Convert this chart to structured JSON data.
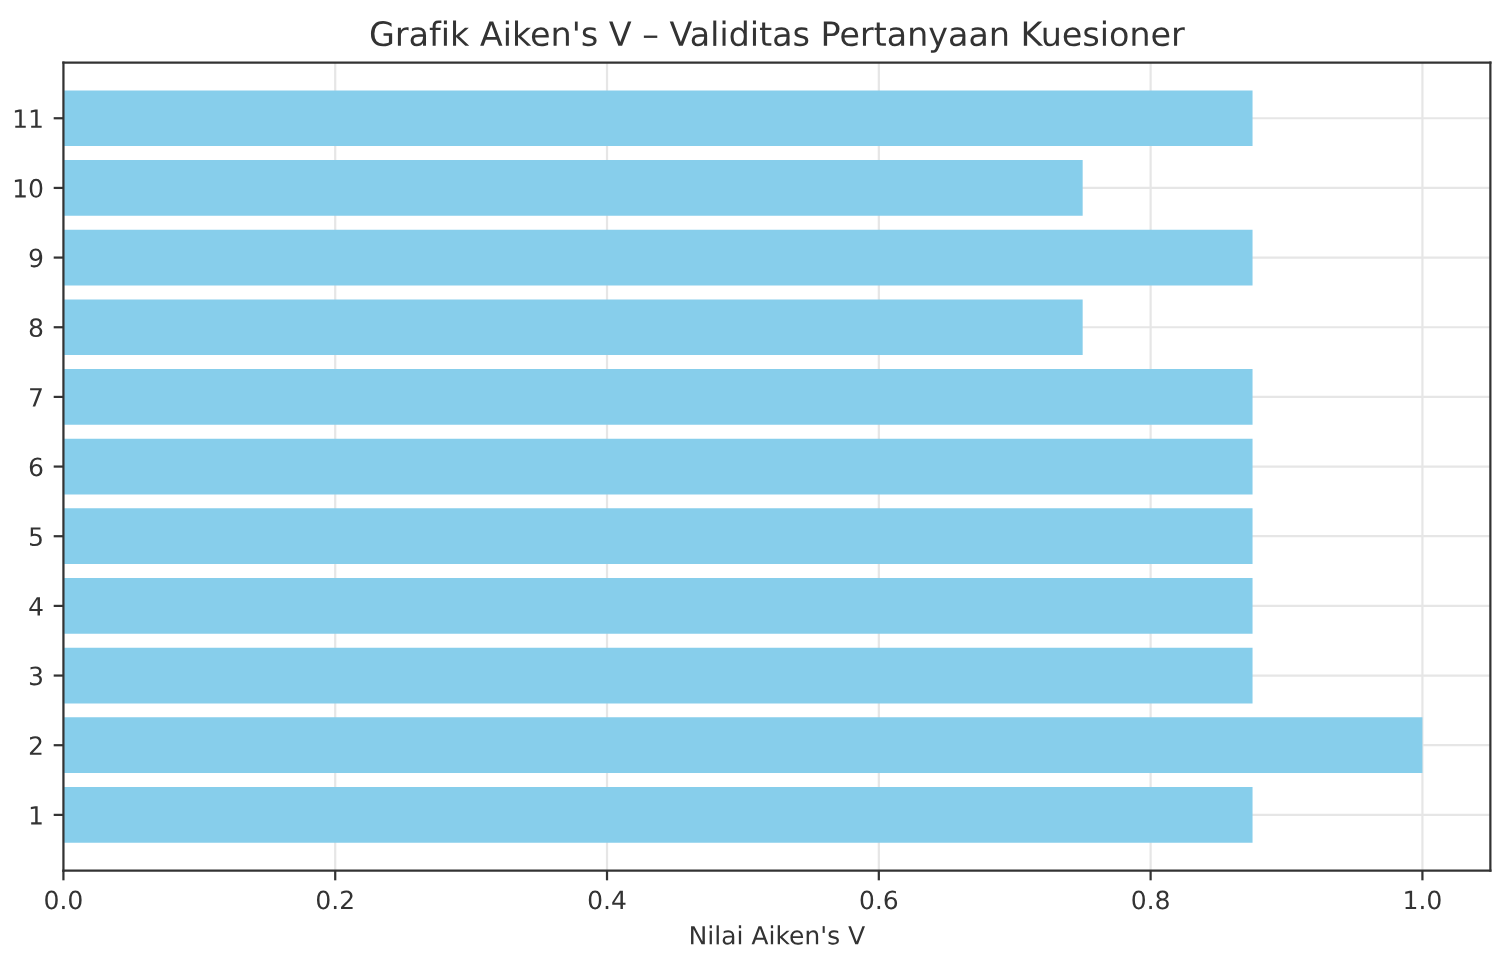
{
  "chart_data": {
    "type": "bar",
    "orientation": "horizontal",
    "title": "Grafik Aiken's V – Validitas Pertanyaan Kuesioner",
    "xlabel": "Nilai Aiken's V",
    "categories": [
      "11",
      "10",
      "9",
      "8",
      "7",
      "6",
      "5",
      "4",
      "3",
      "2",
      "1"
    ],
    "values": [
      0.875,
      0.75,
      0.875,
      0.75,
      0.875,
      0.875,
      0.875,
      0.875,
      0.875,
      1.0,
      0.875
    ],
    "color": "#87ceeb",
    "xlim": [
      0,
      1.05
    ],
    "xticks": [
      {
        "value": 0,
        "label": "0.0"
      },
      {
        "value": 0.2,
        "label": "0.2"
      },
      {
        "value": 0.4,
        "label": "0.4"
      },
      {
        "value": 0.6,
        "label": "0.6"
      },
      {
        "value": 0.8,
        "label": "0.8"
      },
      {
        "value": 1.0,
        "label": "1.0"
      }
    ],
    "grid": true
  }
}
